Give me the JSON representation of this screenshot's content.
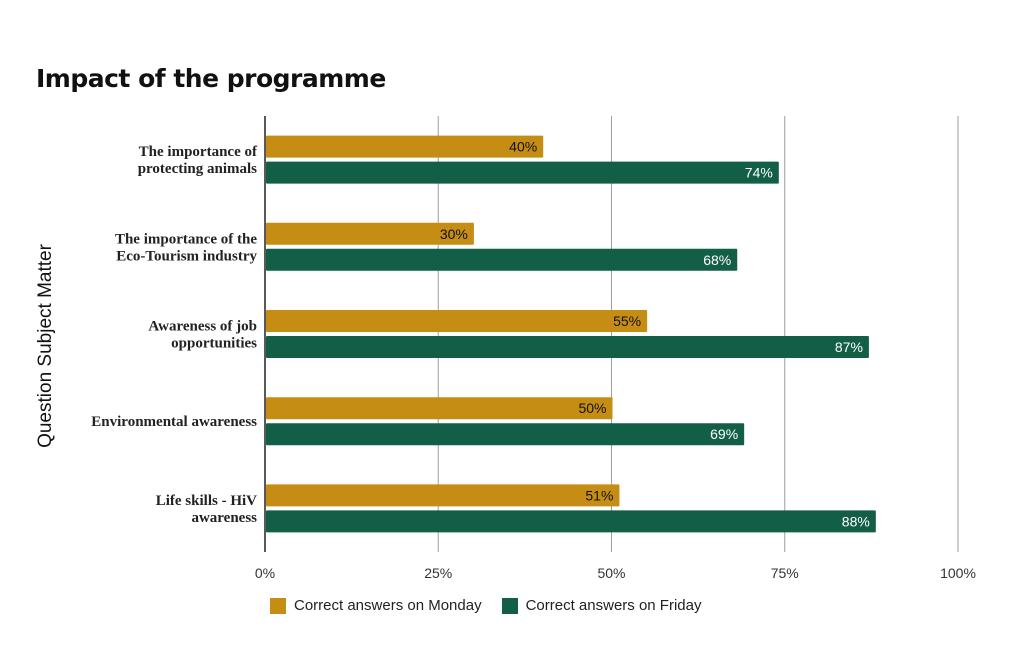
{
  "chart_data": {
    "type": "bar",
    "orientation": "horizontal",
    "title": "Impact of the programme",
    "xlabel": "",
    "ylabel": "Question Subject Matter",
    "categories": [
      [
        "The importance of",
        "protecting animals"
      ],
      [
        "The importance of the",
        "Eco-Tourism industry"
      ],
      [
        "Awareness of job",
        "opportunities"
      ],
      [
        "Environmental awareness"
      ],
      [
        "Life skills - HiV",
        "awareness"
      ]
    ],
    "series": [
      {
        "name": "Correct answers on Monday",
        "values": [
          40,
          30,
          55,
          50,
          51
        ],
        "labels": [
          "40%",
          "30%",
          "55%",
          "50%",
          "51%"
        ],
        "color": "#C68D14",
        "label_color": "#111111"
      },
      {
        "name": "Correct answers on Friday",
        "values": [
          74,
          68,
          87,
          69,
          88
        ],
        "labels": [
          "74%",
          "68%",
          "87%",
          "69%",
          "88%"
        ],
        "color": "#135E46",
        "label_color": "#ffffff"
      }
    ],
    "xlim": [
      0,
      100
    ],
    "xticks": [
      0,
      25,
      50,
      75,
      100
    ],
    "xtick_labels": [
      "0%",
      "25%",
      "50%",
      "75%",
      "100%"
    ],
    "grid": true,
    "legend_position": "bottom"
  }
}
